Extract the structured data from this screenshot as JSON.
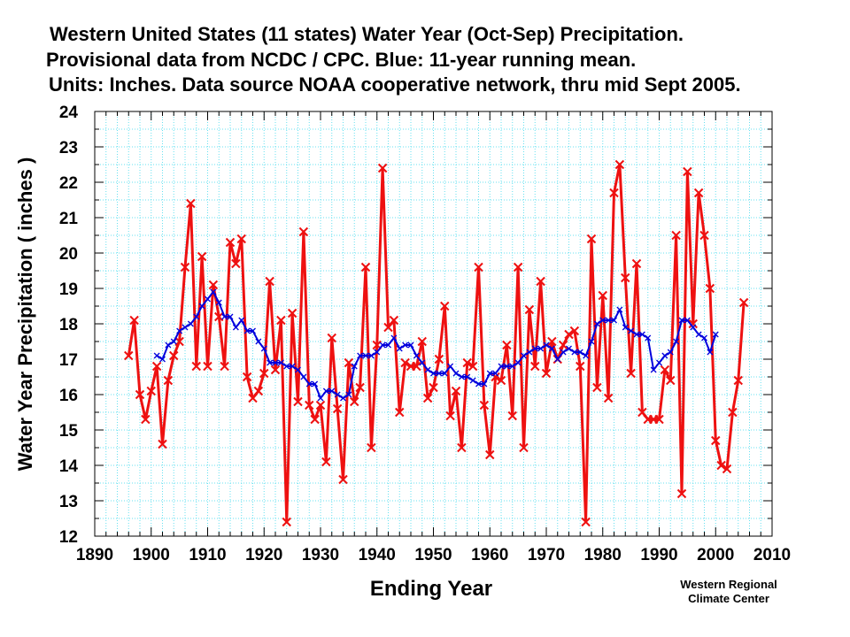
{
  "header": {
    "title_line1": "Western United States (11 states) Water Year (Oct-Sep) Precipitation.",
    "title_line2": "Provisional data from NCDC / CPC.  Blue:  11-year running mean.",
    "title_line3": "Units:  Inches.  Data source NOAA  cooperative network, thru mid Sept 2005."
  },
  "credit": {
    "line1": "Western Regional",
    "line2": "Climate Center"
  },
  "chart_data": {
    "type": "line",
    "xlabel": "Ending Year",
    "ylabel": "Water Year Precipitation  ( inches )",
    "xlim": [
      1890,
      2010
    ],
    "ylim": [
      12,
      24
    ],
    "xticks": [
      1890,
      1900,
      1910,
      1920,
      1930,
      1940,
      1950,
      1960,
      1970,
      1980,
      1990,
      2000,
      2010
    ],
    "yticks": [
      12,
      13,
      14,
      15,
      16,
      17,
      18,
      19,
      20,
      21,
      22,
      23,
      24
    ],
    "grid": true,
    "colors": {
      "annual": "#ee1111",
      "running_mean": "#0000dd",
      "grid": "#66e0f0"
    },
    "series": [
      {
        "name": "Red",
        "x": [
          1896,
          1897,
          1898,
          1899,
          1900,
          1901,
          1902,
          1903,
          1904,
          1905,
          1906,
          1907,
          1908,
          1909,
          1910,
          1911,
          1912,
          1913,
          1914,
          1915,
          1916,
          1917,
          1918,
          1919,
          1920,
          1921,
          1922,
          1923,
          1924,
          1925,
          1926,
          1927,
          1928,
          1929,
          1930,
          1931,
          1932,
          1933,
          1934,
          1935,
          1936,
          1937,
          1938,
          1939,
          1940,
          1941,
          1942,
          1943,
          1944,
          1945,
          1946,
          1947,
          1948,
          1949,
          1950,
          1951,
          1952,
          1953,
          1954,
          1955,
          1956,
          1957,
          1958,
          1959,
          1960,
          1961,
          1962,
          1963,
          1964,
          1965,
          1966,
          1967,
          1968,
          1969,
          1970,
          1971,
          1972,
          1973,
          1974,
          1975,
          1976,
          1977,
          1978,
          1979,
          1980,
          1981,
          1982,
          1983,
          1984,
          1985,
          1986,
          1987,
          1988,
          1989,
          1990,
          1991,
          1992,
          1993,
          1994,
          1995,
          1996,
          1997,
          1998,
          1999,
          2000,
          2001,
          2002,
          2003,
          2004,
          2005
        ],
        "values": [
          17.1,
          18.1,
          16.0,
          15.3,
          16.1,
          16.8,
          14.6,
          16.4,
          17.1,
          17.5,
          19.6,
          21.4,
          16.8,
          19.9,
          16.8,
          19.1,
          18.2,
          16.8,
          20.3,
          19.7,
          20.4,
          16.5,
          15.9,
          16.1,
          16.6,
          19.2,
          16.7,
          18.1,
          12.4,
          18.3,
          15.8,
          20.6,
          15.7,
          15.3,
          15.7,
          14.1,
          17.6,
          15.6,
          13.6,
          16.9,
          15.8,
          16.2,
          19.6,
          14.5,
          17.4,
          22.4,
          17.9,
          18.1,
          15.5,
          16.9,
          16.8,
          16.8,
          17.5,
          15.9,
          16.2,
          17.0,
          18.5,
          15.4,
          16.1,
          14.5,
          16.9,
          16.8,
          19.6,
          15.7,
          14.3,
          16.5,
          16.4,
          17.4,
          15.4,
          19.6,
          14.5,
          18.4,
          16.8,
          19.2,
          16.6,
          17.5,
          17.0,
          17.4,
          17.7,
          17.8,
          16.8,
          12.4,
          20.4,
          16.2,
          18.8,
          15.9,
          21.7,
          22.5,
          19.3,
          16.6,
          19.7,
          15.5,
          15.3,
          15.3,
          15.3,
          16.7,
          16.4,
          20.5,
          13.2,
          22.3,
          18.0,
          21.7,
          20.5,
          19.0,
          14.7,
          14.0,
          13.9,
          15.5,
          16.4,
          18.6
        ]
      },
      {
        "name": "Blue",
        "x": [
          1901,
          1902,
          1903,
          1904,
          1905,
          1906,
          1907,
          1908,
          1909,
          1910,
          1911,
          1912,
          1913,
          1914,
          1915,
          1916,
          1917,
          1918,
          1919,
          1920,
          1921,
          1922,
          1923,
          1924,
          1925,
          1926,
          1927,
          1928,
          1929,
          1930,
          1931,
          1932,
          1933,
          1934,
          1935,
          1936,
          1937,
          1938,
          1939,
          1940,
          1941,
          1942,
          1943,
          1944,
          1945,
          1946,
          1947,
          1948,
          1949,
          1950,
          1951,
          1952,
          1953,
          1954,
          1955,
          1956,
          1957,
          1958,
          1959,
          1960,
          1961,
          1962,
          1963,
          1964,
          1965,
          1966,
          1967,
          1968,
          1969,
          1970,
          1971,
          1972,
          1973,
          1974,
          1975,
          1976,
          1977,
          1978,
          1979,
          1980,
          1981,
          1982,
          1983,
          1984,
          1985,
          1986,
          1987,
          1988,
          1989,
          1990,
          1991,
          1992,
          1993,
          1994,
          1995,
          1996,
          1997,
          1998,
          1999,
          2000
        ],
        "values": [
          17.1,
          17.0,
          17.4,
          17.5,
          17.8,
          17.9,
          18.0,
          18.2,
          18.5,
          18.7,
          18.9,
          18.6,
          18.2,
          18.2,
          17.9,
          18.1,
          17.8,
          17.8,
          17.5,
          17.3,
          16.9,
          16.9,
          16.9,
          16.8,
          16.8,
          16.7,
          16.5,
          16.3,
          16.3,
          15.9,
          16.1,
          16.1,
          16.0,
          15.9,
          16.0,
          16.8,
          17.1,
          17.1,
          17.1,
          17.2,
          17.4,
          17.4,
          17.6,
          17.3,
          17.4,
          17.4,
          17.1,
          16.9,
          16.7,
          16.6,
          16.6,
          16.6,
          16.8,
          16.6,
          16.5,
          16.5,
          16.4,
          16.3,
          16.3,
          16.6,
          16.6,
          16.8,
          16.8,
          16.8,
          16.9,
          17.1,
          17.2,
          17.3,
          17.3,
          17.4,
          17.3,
          17.0,
          17.2,
          17.3,
          17.2,
          17.2,
          17.1,
          17.5,
          18.0,
          18.1,
          18.1,
          18.1,
          18.4,
          17.9,
          17.8,
          17.7,
          17.7,
          17.6,
          16.7,
          16.9,
          17.1,
          17.2,
          17.5,
          18.1,
          18.1,
          17.9,
          17.7,
          17.6,
          17.2,
          17.7
        ]
      }
    ]
  }
}
